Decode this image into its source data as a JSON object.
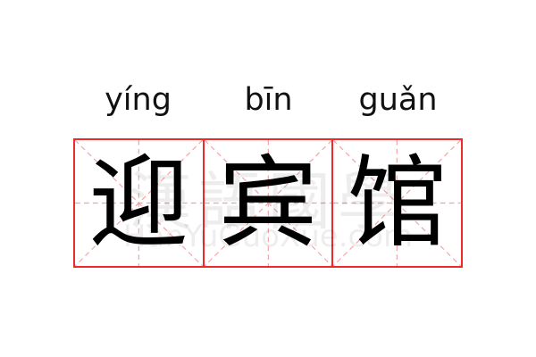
{
  "entries": [
    {
      "pinyin": "yíng",
      "char": "迎"
    },
    {
      "pinyin": "bīn",
      "char": "宾"
    },
    {
      "pinyin": "guǎn",
      "char": "馆"
    }
  ],
  "watermark": {
    "text": "漢語國學",
    "url": "HanYuGuoXue.com"
  },
  "colors": {
    "grid": "#ee2b2b",
    "guide": "#f4a0a0"
  }
}
